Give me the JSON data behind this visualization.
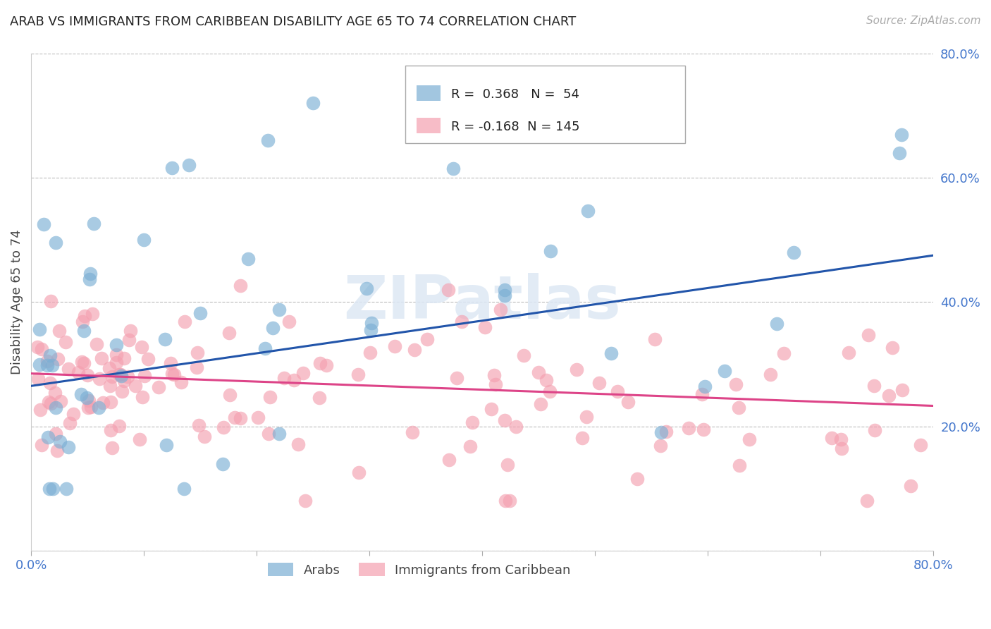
{
  "title": "ARAB VS IMMIGRANTS FROM CARIBBEAN DISABILITY AGE 65 TO 74 CORRELATION CHART",
  "source": "Source: ZipAtlas.com",
  "ylabel": "Disability Age 65 to 74",
  "xlim": [
    0.0,
    0.8
  ],
  "ylim": [
    0.0,
    0.8
  ],
  "background_color": "#ffffff",
  "grid_color": "#bbbbbb",
  "arab_color": "#7bafd4",
  "caribbean_color": "#f4a0b0",
  "arab_line_color": "#2255aa",
  "caribbean_line_color": "#dd4488",
  "R_arab": 0.368,
  "N_arab": 54,
  "R_caribbean": -0.168,
  "N_caribbean": 145,
  "watermark": "ZIPatlas",
  "legend_labels": [
    "Arabs",
    "Immigrants from Caribbean"
  ],
  "arab_line_x0": 0.0,
  "arab_line_y0": 0.265,
  "arab_line_x1": 0.8,
  "arab_line_y1": 0.475,
  "carib_line_x0": 0.0,
  "carib_line_y0": 0.285,
  "carib_line_x1": 0.8,
  "carib_line_y1": 0.233
}
